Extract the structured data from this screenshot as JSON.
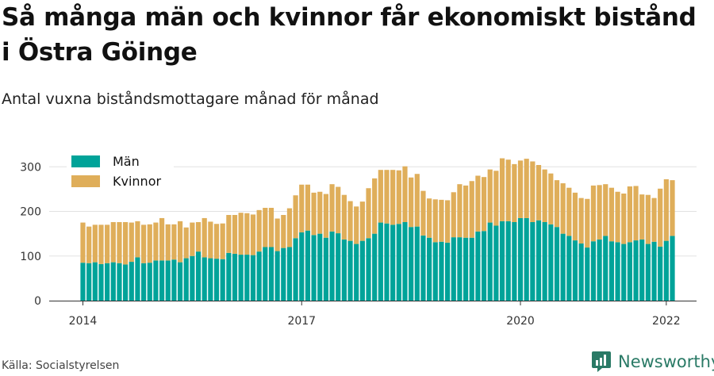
{
  "title": "Så många män och kvinnor får ekonomiskt bistånd i Östra Göinge",
  "subtitle": "Antal vuxna biståndsmottagare månad för månad",
  "source": "Källa: Socialstyrelsen",
  "brand": {
    "name": "Newsworthy",
    "icon": "bar-chart-logo-icon",
    "color": "#2a7a66"
  },
  "chart_data": {
    "type": "bar",
    "stacked": true,
    "ylim": [
      0,
      320
    ],
    "yticks": [
      "0",
      "100",
      "200",
      "300"
    ],
    "xticks": [
      "2014",
      "2017",
      "2020",
      "2022"
    ],
    "grid": true,
    "legend_placement": "top-left",
    "series": [
      {
        "name": "Män",
        "color": "#00a399",
        "values": [
          85,
          84,
          86,
          82,
          84,
          86,
          84,
          81,
          87,
          97,
          84,
          85,
          90,
          90,
          90,
          92,
          86,
          95,
          100,
          110,
          97,
          95,
          94,
          93,
          107,
          105,
          103,
          103,
          102,
          110,
          120,
          120,
          111,
          118,
          120,
          140,
          153,
          157,
          147,
          150,
          141,
          155,
          151,
          137,
          134,
          127,
          134,
          140,
          150,
          175,
          173,
          170,
          172,
          176,
          165,
          166,
          146,
          141,
          131,
          132,
          130,
          142,
          142,
          141,
          141,
          155,
          156,
          175,
          168,
          178,
          178,
          176,
          185,
          185,
          176,
          180,
          176,
          171,
          165,
          150,
          145,
          135,
          128,
          119,
          133,
          137,
          145,
          133,
          131,
          127,
          131,
          135,
          137,
          127,
          132,
          121,
          134,
          145
        ]
      },
      {
        "name": "Kvinnor",
        "color": "#dfae5a",
        "values": [
          90,
          82,
          84,
          88,
          86,
          90,
          92,
          95,
          88,
          81,
          86,
          86,
          85,
          95,
          81,
          79,
          92,
          69,
          75,
          66,
          88,
          82,
          78,
          80,
          85,
          87,
          94,
          93,
          91,
          93,
          88,
          88,
          73,
          74,
          87,
          96,
          107,
          103,
          95,
          94,
          98,
          106,
          104,
          100,
          89,
          84,
          88,
          112,
          124,
          118,
          120,
          123,
          120,
          125,
          111,
          118,
          100,
          88,
          96,
          94,
          95,
          101,
          119,
          117,
          127,
          125,
          121,
          119,
          123,
          141,
          138,
          130,
          129,
          133,
          136,
          124,
          118,
          114,
          105,
          113,
          108,
          107,
          102,
          109,
          125,
          122,
          116,
          120,
          113,
          113,
          125,
          122,
          101,
          110,
          98,
          130,
          138,
          125
        ]
      }
    ]
  }
}
